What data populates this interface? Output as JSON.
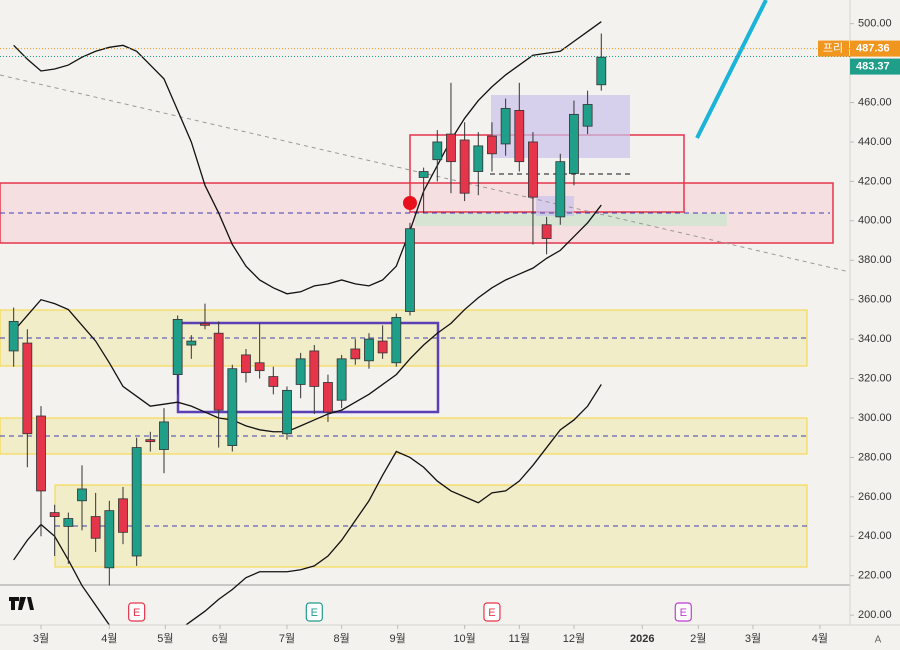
{
  "chart_data": {
    "type": "candlestick",
    "x": [
      0,
      1,
      2,
      3,
      4,
      5,
      6,
      7,
      8,
      9,
      10,
      11,
      12,
      13,
      14,
      15,
      16,
      17,
      18,
      19,
      20,
      21,
      22,
      23,
      24,
      25,
      26,
      27,
      28,
      29,
      30,
      31,
      32,
      33,
      34,
      35,
      36,
      37,
      38,
      39,
      40,
      41,
      42,
      43
    ],
    "open": [
      334,
      338,
      301,
      252,
      245,
      258,
      250,
      224,
      259,
      230,
      289,
      284,
      322,
      337,
      348,
      343,
      286,
      332,
      328,
      321,
      292,
      317,
      334,
      318,
      309,
      335,
      329,
      339,
      328,
      354,
      422,
      431,
      444,
      441,
      425,
      443,
      439,
      456,
      440,
      398,
      402,
      424,
      448,
      469
    ],
    "high": [
      356,
      345,
      306,
      256,
      252,
      276,
      262,
      258,
      265,
      290,
      293,
      305,
      352,
      342,
      358,
      349,
      327,
      335,
      348,
      326,
      316,
      333,
      337,
      322,
      332,
      340,
      343,
      347,
      353,
      399,
      427,
      446,
      470,
      450,
      445,
      450,
      462,
      470,
      445,
      402,
      434,
      461,
      466,
      495
    ],
    "low": [
      326,
      275,
      240,
      230,
      226,
      243,
      232,
      215,
      236,
      225,
      283,
      272,
      312,
      330,
      345,
      285,
      283,
      318,
      320,
      312,
      289,
      310,
      302,
      298,
      305,
      327,
      325,
      330,
      326,
      352,
      404,
      420,
      414,
      410,
      413,
      425,
      433,
      425,
      388,
      383,
      398,
      418,
      444,
      466
    ],
    "close": [
      349,
      292,
      263,
      250,
      249,
      264,
      239,
      253,
      242,
      285,
      288,
      298,
      350,
      339,
      347,
      304,
      325,
      323,
      324,
      316,
      314,
      330,
      316,
      303,
      330,
      330,
      340,
      333,
      351,
      396,
      425,
      440,
      430,
      414,
      438,
      434,
      457,
      430,
      412,
      391,
      430,
      454,
      459,
      483
    ],
    "up_color": "#1f9e8a",
    "down_color": "#e5354b",
    "lines": [
      {
        "color": "#111111",
        "values": [
          489,
          482,
          476,
          477,
          479,
          483,
          486,
          488,
          489,
          486,
          479,
          472,
          456,
          440,
          418,
          404,
          388,
          377,
          370,
          366,
          363,
          364,
          367,
          368,
          370,
          368,
          367,
          370,
          377,
          395,
          415,
          428,
          441,
          452,
          461,
          468,
          474,
          479,
          484,
          485,
          486,
          491,
          496,
          501
        ]
      },
      {
        "color": "#111111",
        "values": [
          344,
          352,
          360,
          358,
          355,
          347,
          339,
          328,
          316,
          311,
          306,
          307,
          308,
          306,
          303,
          300,
          299,
          296,
          294,
          293,
          293,
          296,
          299,
          302,
          304,
          308,
          312,
          317,
          322,
          330,
          337,
          343,
          348,
          355,
          361,
          366,
          370,
          373,
          376,
          381,
          385,
          392,
          399,
          408
        ]
      },
      {
        "color": "#111111",
        "values": [
          228,
          238,
          246,
          240,
          228,
          215,
          205,
          195,
          187,
          182,
          180,
          182,
          192,
          197,
          202,
          208,
          213,
          219,
          222,
          222,
          222,
          223,
          225,
          230,
          238,
          248,
          258,
          271,
          283,
          280,
          275,
          268,
          263,
          260,
          257,
          262,
          263,
          268,
          276,
          285,
          294,
          299,
          306,
          317
        ]
      }
    ],
    "xlim": [
      -1,
      61.2
    ],
    "ylim": [
      195,
      512
    ],
    "yticks": [
      {
        "value": 200,
        "label": "200.00"
      },
      {
        "value": 220,
        "label": "220.00"
      },
      {
        "value": 240,
        "label": "240.00"
      },
      {
        "value": 260,
        "label": "260.00"
      },
      {
        "value": 280,
        "label": "280.00"
      },
      {
        "value": 300,
        "label": "300.00"
      },
      {
        "value": 320,
        "label": "320.00"
      },
      {
        "value": 340,
        "label": "340.00"
      },
      {
        "value": 360,
        "label": "360.00"
      },
      {
        "value": 380,
        "label": "380.00"
      },
      {
        "value": 400,
        "label": "400.00"
      },
      {
        "value": 420,
        "label": "420.00"
      },
      {
        "value": 440,
        "label": "440.00"
      },
      {
        "value": 460,
        "label": "460.00"
      },
      {
        "value": 500,
        "label": "500.00"
      }
    ],
    "xticks": [
      {
        "value": 2,
        "label": "3월"
      },
      {
        "value": 7,
        "label": "4월"
      },
      {
        "value": 11.1,
        "label": "5월"
      },
      {
        "value": 15.1,
        "label": "6월"
      },
      {
        "value": 20,
        "label": "7월"
      },
      {
        "value": 24,
        "label": "8월"
      },
      {
        "value": 28.1,
        "label": "9월"
      },
      {
        "value": 33,
        "label": "10월"
      },
      {
        "value": 37,
        "label": "11월"
      },
      {
        "value": 41,
        "label": "12월"
      },
      {
        "value": 46,
        "label": "2026"
      },
      {
        "value": 50.1,
        "label": "2월"
      },
      {
        "value": 54.1,
        "label": "3월"
      },
      {
        "value": 59,
        "label": "4월"
      }
    ],
    "events": [
      {
        "x": 9,
        "label": "E",
        "color": "#e5354b"
      },
      {
        "x": 22,
        "label": "E",
        "color": "#1f9e8a"
      },
      {
        "x": 35,
        "label": "E",
        "color": "#e5354b"
      },
      {
        "x": 49,
        "label": "E",
        "color": "#c23ad6"
      }
    ],
    "price_lines": [
      {
        "tag": "프리",
        "value": 487.36,
        "color": "#f0961e"
      },
      {
        "value": 483.37,
        "color": "#1f9e8a"
      }
    ],
    "scale_mode": "A"
  }
}
